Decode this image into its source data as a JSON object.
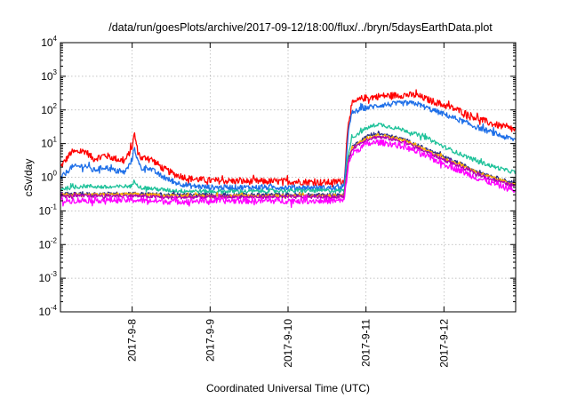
{
  "chart_data": {
    "type": "line",
    "title": "/data/run/goesPlots/archive/2017-09-12/18:00/flux/../bryn/5daysEarthData.plot",
    "xlabel": "Coordinated Universal Time (UTC)",
    "ylabel": "cSv/day",
    "yscale": "log",
    "ylim": [
      0.0001,
      10000
    ],
    "xlim": [
      -0.92,
      4.92
    ],
    "x_unit_note": "x values are days relative to 2017-9-8 00:00 UTC",
    "yticks": [
      {
        "base": "10",
        "exp": "-4"
      },
      {
        "base": "10",
        "exp": "-3"
      },
      {
        "base": "10",
        "exp": "-2"
      },
      {
        "base": "10",
        "exp": "-1"
      },
      {
        "base": "10",
        "exp": "0"
      },
      {
        "base": "10",
        "exp": "1"
      },
      {
        "base": "10",
        "exp": "2"
      },
      {
        "base": "10",
        "exp": "3"
      },
      {
        "base": "10",
        "exp": "4"
      }
    ],
    "xticks": [
      {
        "label": "2017-9-8",
        "value": 0
      },
      {
        "label": "2017-9-9",
        "value": 1
      },
      {
        "label": "2017-9-10",
        "value": 2
      },
      {
        "label": "2017-9-11",
        "value": 3
      },
      {
        "label": "2017-9-12",
        "value": 4
      }
    ],
    "grid": true,
    "legend": "none",
    "series": [
      {
        "color": "#ff0000",
        "noise": 0.1,
        "points": [
          [
            -0.92,
            2.0
          ],
          [
            -0.78,
            5.5
          ],
          [
            -0.6,
            6.0
          ],
          [
            -0.5,
            3.5
          ],
          [
            -0.35,
            4.5
          ],
          [
            -0.2,
            3.5
          ],
          [
            -0.1,
            3.0
          ],
          [
            -0.05,
            4.5
          ],
          [
            0.0,
            8.0
          ],
          [
            0.03,
            20.0
          ],
          [
            0.07,
            6.0
          ],
          [
            0.12,
            3.5
          ],
          [
            0.2,
            4.0
          ],
          [
            0.28,
            3.0
          ],
          [
            0.4,
            1.8
          ],
          [
            0.55,
            1.2
          ],
          [
            0.75,
            0.9
          ],
          [
            1.0,
            0.8
          ],
          [
            1.5,
            0.75
          ],
          [
            2.0,
            0.75
          ],
          [
            2.5,
            0.7
          ],
          [
            2.72,
            0.75
          ],
          [
            2.77,
            40.0
          ],
          [
            2.82,
            150.0
          ],
          [
            2.95,
            220.0
          ],
          [
            3.2,
            260.0
          ],
          [
            3.5,
            280.0
          ],
          [
            3.65,
            270.0
          ],
          [
            3.8,
            200.0
          ],
          [
            4.0,
            140.0
          ],
          [
            4.2,
            95.0
          ],
          [
            4.4,
            60.0
          ],
          [
            4.6,
            40.0
          ],
          [
            4.8,
            30.0
          ],
          [
            4.92,
            25.0
          ]
        ]
      },
      {
        "color": "#1e6fe8",
        "noise": 0.08,
        "points": [
          [
            -0.92,
            0.9
          ],
          [
            -0.78,
            2.0
          ],
          [
            -0.6,
            2.2
          ],
          [
            -0.5,
            1.6
          ],
          [
            -0.35,
            2.0
          ],
          [
            -0.2,
            1.5
          ],
          [
            -0.1,
            1.4
          ],
          [
            -0.05,
            2.0
          ],
          [
            0.0,
            3.5
          ],
          [
            0.03,
            8.0
          ],
          [
            0.07,
            3.0
          ],
          [
            0.12,
            1.8
          ],
          [
            0.2,
            2.0
          ],
          [
            0.28,
            1.5
          ],
          [
            0.4,
            1.0
          ],
          [
            0.55,
            0.7
          ],
          [
            0.75,
            0.55
          ],
          [
            1.0,
            0.5
          ],
          [
            1.5,
            0.5
          ],
          [
            2.0,
            0.5
          ],
          [
            2.5,
            0.48
          ],
          [
            2.72,
            0.5
          ],
          [
            2.77,
            20.0
          ],
          [
            2.82,
            80.0
          ],
          [
            2.95,
            110.0
          ],
          [
            3.2,
            140.0
          ],
          [
            3.5,
            160.0
          ],
          [
            3.65,
            155.0
          ],
          [
            3.8,
            110.0
          ],
          [
            4.0,
            75.0
          ],
          [
            4.2,
            50.0
          ],
          [
            4.4,
            32.0
          ],
          [
            4.6,
            22.0
          ],
          [
            4.8,
            15.0
          ],
          [
            4.92,
            13.0
          ]
        ]
      },
      {
        "color": "#1fc29a",
        "noise": 0.06,
        "points": [
          [
            -0.92,
            0.45
          ],
          [
            -0.6,
            0.55
          ],
          [
            -0.3,
            0.5
          ],
          [
            0.0,
            0.55
          ],
          [
            0.03,
            0.8
          ],
          [
            0.1,
            0.5
          ],
          [
            0.5,
            0.4
          ],
          [
            1.0,
            0.38
          ],
          [
            1.5,
            0.38
          ],
          [
            2.0,
            0.4
          ],
          [
            2.5,
            0.4
          ],
          [
            2.72,
            0.4
          ],
          [
            2.77,
            5.0
          ],
          [
            2.82,
            15.0
          ],
          [
            3.0,
            28.0
          ],
          [
            3.15,
            38.0
          ],
          [
            3.3,
            32.0
          ],
          [
            3.5,
            25.0
          ],
          [
            3.8,
            14.0
          ],
          [
            4.0,
            8.0
          ],
          [
            4.2,
            5.0
          ],
          [
            4.4,
            3.2
          ],
          [
            4.6,
            2.2
          ],
          [
            4.8,
            1.6
          ],
          [
            4.92,
            1.4
          ]
        ]
      },
      {
        "color": "#2a2a88",
        "noise": 0.05,
        "points": [
          [
            -0.92,
            0.32
          ],
          [
            -0.5,
            0.32
          ],
          [
            0.0,
            0.33
          ],
          [
            0.5,
            0.3
          ],
          [
            1.0,
            0.3
          ],
          [
            1.5,
            0.3
          ],
          [
            2.0,
            0.3
          ],
          [
            2.5,
            0.3
          ],
          [
            2.72,
            0.3
          ],
          [
            2.77,
            3.0
          ],
          [
            2.82,
            8.0
          ],
          [
            3.0,
            16.0
          ],
          [
            3.15,
            20.0
          ],
          [
            3.3,
            17.0
          ],
          [
            3.5,
            13.0
          ],
          [
            3.8,
            6.5
          ],
          [
            4.0,
            4.0
          ],
          [
            4.2,
            2.6
          ],
          [
            4.4,
            1.6
          ],
          [
            4.6,
            1.1
          ],
          [
            4.8,
            0.78
          ],
          [
            4.92,
            0.68
          ]
        ]
      },
      {
        "color": "#ffb000",
        "noise": 0.05,
        "points": [
          [
            -0.92,
            0.3
          ],
          [
            -0.5,
            0.3
          ],
          [
            0.0,
            0.31
          ],
          [
            0.5,
            0.28
          ],
          [
            1.0,
            0.28
          ],
          [
            1.5,
            0.28
          ],
          [
            2.0,
            0.28
          ],
          [
            2.5,
            0.28
          ],
          [
            2.72,
            0.28
          ],
          [
            2.77,
            2.8
          ],
          [
            2.82,
            7.5
          ],
          [
            3.0,
            15.0
          ],
          [
            3.15,
            18.0
          ],
          [
            3.3,
            16.0
          ],
          [
            3.5,
            12.0
          ],
          [
            3.8,
            6.0
          ],
          [
            4.0,
            3.7
          ],
          [
            4.2,
            2.4
          ],
          [
            4.4,
            1.5
          ],
          [
            4.6,
            1.0
          ],
          [
            4.8,
            0.72
          ],
          [
            4.92,
            0.62
          ]
        ]
      },
      {
        "color": "#b200b2",
        "noise": 0.05,
        "points": [
          [
            -0.92,
            0.27
          ],
          [
            -0.5,
            0.28
          ],
          [
            0.0,
            0.28
          ],
          [
            0.5,
            0.25
          ],
          [
            1.0,
            0.26
          ],
          [
            1.5,
            0.26
          ],
          [
            2.0,
            0.26
          ],
          [
            2.5,
            0.26
          ],
          [
            2.72,
            0.26
          ],
          [
            2.77,
            2.5
          ],
          [
            2.82,
            7.0
          ],
          [
            3.0,
            13.0
          ],
          [
            3.15,
            16.0
          ],
          [
            3.3,
            14.0
          ],
          [
            3.5,
            11.0
          ],
          [
            3.8,
            5.3
          ],
          [
            4.0,
            3.3
          ],
          [
            4.2,
            2.1
          ],
          [
            4.4,
            1.3
          ],
          [
            4.6,
            0.9
          ],
          [
            4.8,
            0.64
          ],
          [
            4.92,
            0.55
          ]
        ]
      },
      {
        "color": "#ff00ff",
        "noise": 0.09,
        "points": [
          [
            -0.92,
            0.2
          ],
          [
            -0.5,
            0.21
          ],
          [
            0.0,
            0.21
          ],
          [
            0.5,
            0.19
          ],
          [
            1.0,
            0.2
          ],
          [
            1.5,
            0.2
          ],
          [
            2.0,
            0.2
          ],
          [
            2.5,
            0.2
          ],
          [
            2.72,
            0.2
          ],
          [
            2.77,
            2.0
          ],
          [
            2.82,
            5.0
          ],
          [
            3.0,
            9.5
          ],
          [
            3.15,
            11.0
          ],
          [
            3.3,
            10.0
          ],
          [
            3.5,
            8.0
          ],
          [
            3.8,
            4.0
          ],
          [
            4.0,
            2.5
          ],
          [
            4.2,
            1.6
          ],
          [
            4.4,
            1.0
          ],
          [
            4.6,
            0.7
          ],
          [
            4.8,
            0.48
          ],
          [
            4.92,
            0.4
          ]
        ]
      }
    ]
  }
}
